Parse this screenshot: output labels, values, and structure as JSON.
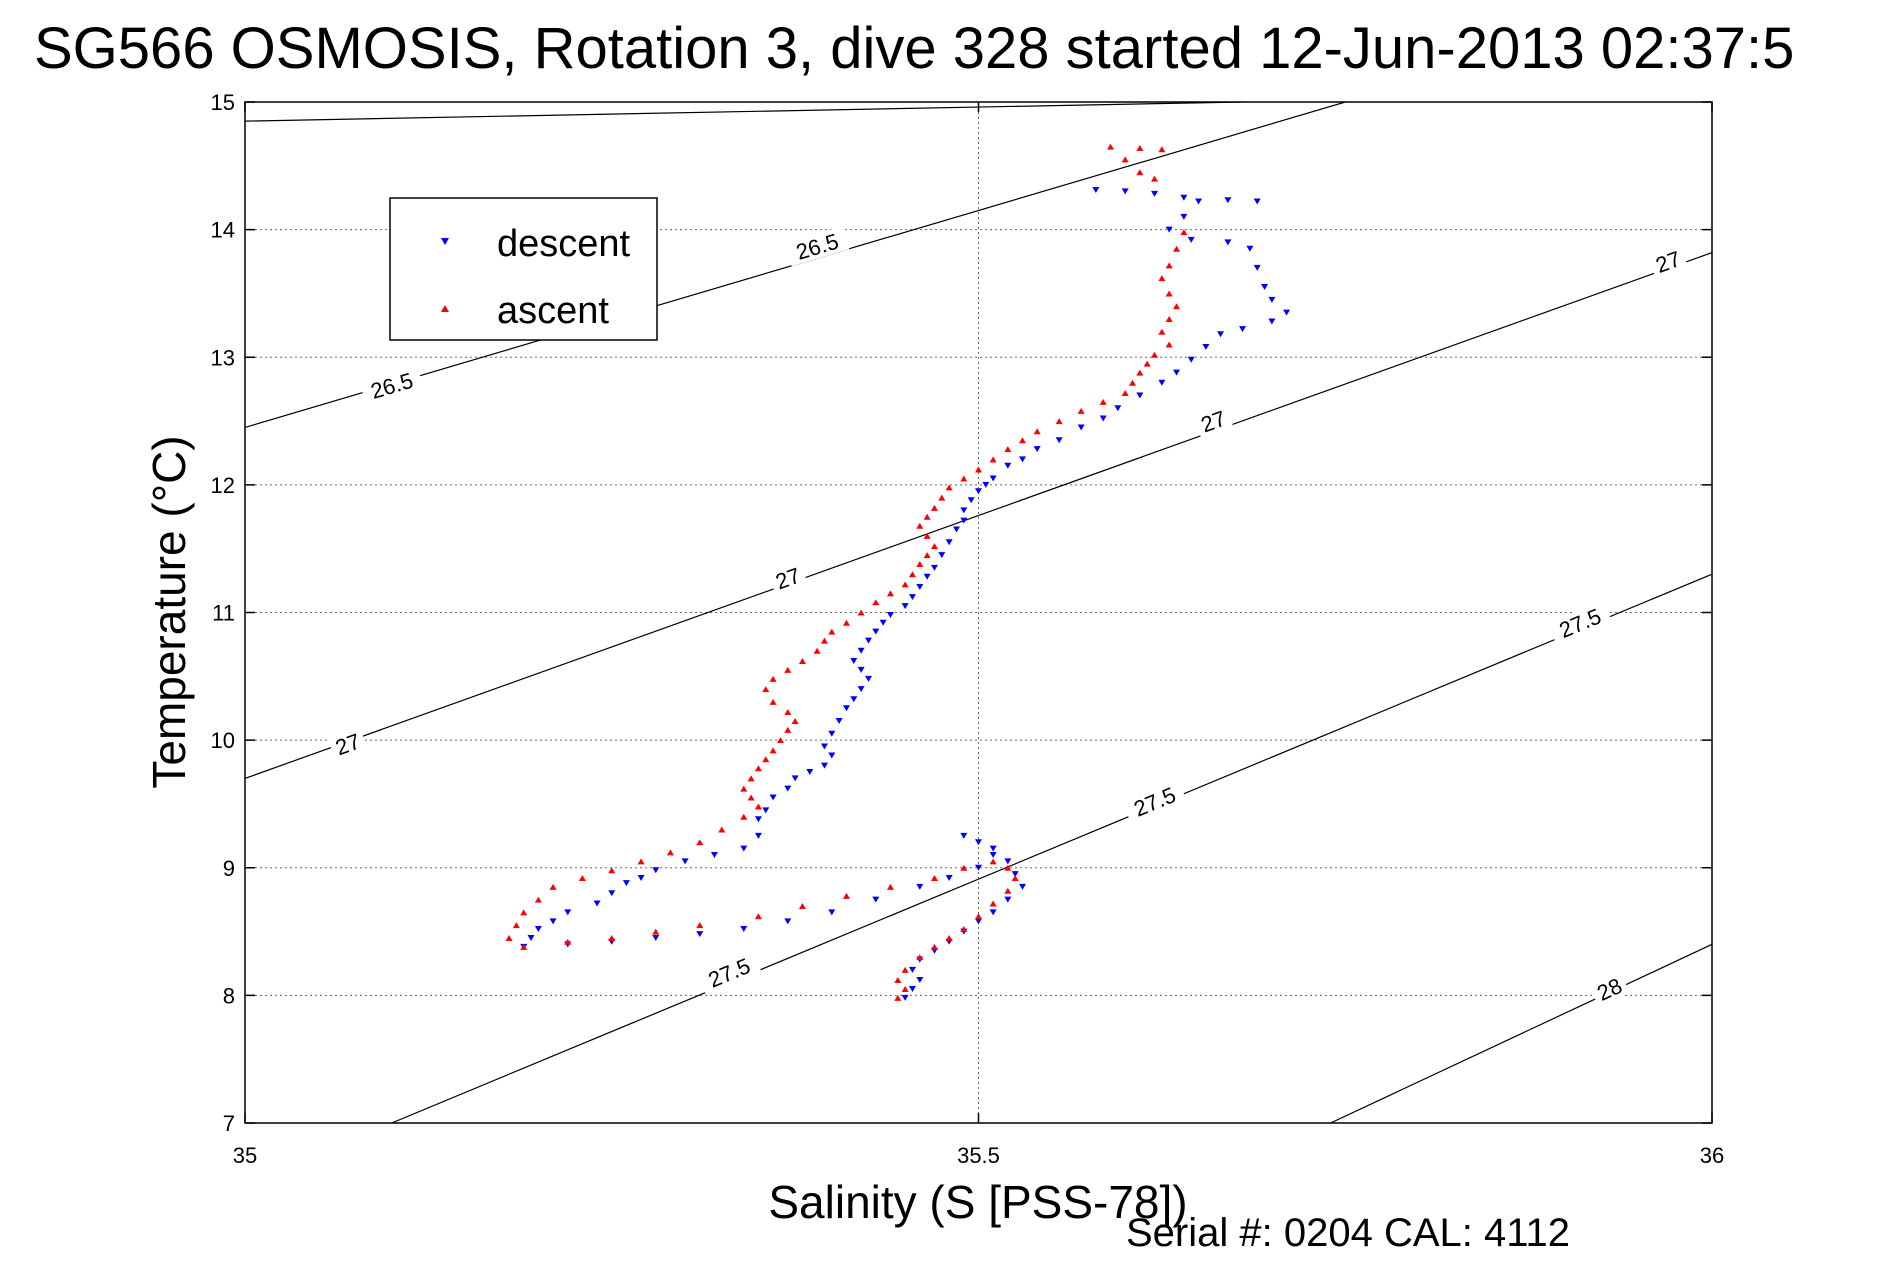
{
  "chart_data": {
    "type": "scatter",
    "title": "SG566 OSMOSIS, Rotation 3, dive 328 started 12-Jun-2013 02:37:5",
    "xlabel": "Salinity (S [PSS-78])",
    "ylabel": "Temperature (°C)",
    "xlim": [
      35,
      36
    ],
    "ylim": [
      7,
      15
    ],
    "x_ticks": [
      "35",
      "35.5",
      "36"
    ],
    "y_ticks": [
      "7",
      "8",
      "9",
      "10",
      "11",
      "12",
      "13",
      "14",
      "15"
    ],
    "grid": "dotted, at tick marks",
    "legend_position": "upper-left",
    "footer": "Serial #: 0204  CAL: 4112",
    "contours": [
      {
        "label": "26.5",
        "points": [
          [
            35.0,
            14.85
          ],
          [
            35.68,
            15.0
          ]
        ],
        "label_positions": []
      },
      {
        "label": "26.5",
        "points": [
          [
            35.0,
            12.45
          ],
          [
            35.75,
            15.0
          ]
        ],
        "label_positions": [
          [
            35.1,
            12.78
          ],
          [
            35.39,
            13.87
          ]
        ]
      },
      {
        "label": "27",
        "points": [
          [
            35.0,
            9.7
          ],
          [
            36.0,
            13.82
          ]
        ],
        "label_positions": [
          [
            35.07,
            9.97
          ],
          [
            35.37,
            11.27
          ],
          [
            35.66,
            12.5
          ],
          [
            35.97,
            13.75
          ]
        ]
      },
      {
        "label": "27.5",
        "points": [
          [
            35.1,
            7.0
          ],
          [
            36.0,
            11.3
          ]
        ],
        "label_positions": [
          [
            35.33,
            8.18
          ],
          [
            35.62,
            9.52
          ],
          [
            35.91,
            10.92
          ]
        ]
      },
      {
        "label": "28",
        "points": [
          [
            35.74,
            7.0
          ],
          [
            36.0,
            8.4
          ]
        ],
        "label_positions": [
          [
            35.93,
            8.05
          ]
        ]
      }
    ],
    "series": [
      {
        "name": "descent",
        "color": "#0000ff",
        "marker": "triangle-down",
        "points": [
          [
            35.58,
            14.31
          ],
          [
            35.6,
            14.3
          ],
          [
            35.62,
            14.28
          ],
          [
            35.64,
            14.25
          ],
          [
            35.65,
            14.22
          ],
          [
            35.67,
            14.23
          ],
          [
            35.69,
            14.22
          ],
          [
            35.64,
            14.1
          ],
          [
            35.63,
            14.0
          ],
          [
            35.645,
            13.92
          ],
          [
            35.67,
            13.9
          ],
          [
            35.685,
            13.85
          ],
          [
            35.69,
            13.7
          ],
          [
            35.695,
            13.55
          ],
          [
            35.7,
            13.45
          ],
          [
            35.71,
            13.35
          ],
          [
            35.7,
            13.28
          ],
          [
            35.68,
            13.22
          ],
          [
            35.665,
            13.18
          ],
          [
            35.655,
            13.08
          ],
          [
            35.645,
            12.98
          ],
          [
            35.635,
            12.88
          ],
          [
            35.625,
            12.8
          ],
          [
            35.61,
            12.7
          ],
          [
            35.595,
            12.6
          ],
          [
            35.585,
            12.52
          ],
          [
            35.57,
            12.45
          ],
          [
            35.555,
            12.35
          ],
          [
            35.54,
            12.28
          ],
          [
            35.53,
            12.2
          ],
          [
            35.52,
            12.15
          ],
          [
            35.51,
            12.05
          ],
          [
            35.505,
            12.0
          ],
          [
            35.5,
            11.95
          ],
          [
            35.495,
            11.88
          ],
          [
            35.49,
            11.8
          ],
          [
            35.49,
            11.72
          ],
          [
            35.485,
            11.65
          ],
          [
            35.48,
            11.55
          ],
          [
            35.475,
            11.45
          ],
          [
            35.47,
            11.35
          ],
          [
            35.465,
            11.28
          ],
          [
            35.46,
            11.2
          ],
          [
            35.455,
            11.12
          ],
          [
            35.45,
            11.05
          ],
          [
            35.44,
            10.98
          ],
          [
            35.435,
            10.92
          ],
          [
            35.43,
            10.85
          ],
          [
            35.425,
            10.78
          ],
          [
            35.42,
            10.7
          ],
          [
            35.415,
            10.62
          ],
          [
            35.42,
            10.55
          ],
          [
            35.425,
            10.48
          ],
          [
            35.42,
            10.4
          ],
          [
            35.415,
            10.32
          ],
          [
            35.41,
            10.25
          ],
          [
            35.405,
            10.15
          ],
          [
            35.4,
            10.05
          ],
          [
            35.395,
            9.95
          ],
          [
            35.4,
            9.88
          ],
          [
            35.395,
            9.8
          ],
          [
            35.385,
            9.75
          ],
          [
            35.375,
            9.7
          ],
          [
            35.37,
            9.62
          ],
          [
            35.36,
            9.55
          ],
          [
            35.355,
            9.45
          ],
          [
            35.35,
            9.38
          ],
          [
            35.35,
            9.25
          ],
          [
            35.34,
            9.15
          ],
          [
            35.32,
            9.1
          ],
          [
            35.3,
            9.05
          ],
          [
            35.28,
            8.98
          ],
          [
            35.27,
            8.92
          ],
          [
            35.26,
            8.88
          ],
          [
            35.25,
            8.8
          ],
          [
            35.24,
            8.72
          ],
          [
            35.22,
            8.65
          ],
          [
            35.21,
            8.58
          ],
          [
            35.2,
            8.52
          ],
          [
            35.195,
            8.45
          ],
          [
            35.19,
            8.38
          ],
          [
            35.22,
            8.4
          ],
          [
            35.25,
            8.42
          ],
          [
            35.28,
            8.45
          ],
          [
            35.31,
            8.48
          ],
          [
            35.34,
            8.52
          ],
          [
            35.37,
            8.58
          ],
          [
            35.4,
            8.65
          ],
          [
            35.43,
            8.75
          ],
          [
            35.46,
            8.85
          ],
          [
            35.48,
            8.92
          ],
          [
            35.5,
            9.0
          ],
          [
            35.51,
            9.1
          ],
          [
            35.5,
            9.2
          ],
          [
            35.49,
            9.25
          ],
          [
            35.51,
            9.15
          ],
          [
            35.52,
            9.05
          ],
          [
            35.525,
            8.95
          ],
          [
            35.53,
            8.85
          ],
          [
            35.52,
            8.75
          ],
          [
            35.51,
            8.65
          ],
          [
            35.5,
            8.58
          ],
          [
            35.49,
            8.5
          ],
          [
            35.48,
            8.42
          ],
          [
            35.47,
            8.35
          ],
          [
            35.46,
            8.28
          ],
          [
            35.455,
            8.2
          ],
          [
            35.46,
            8.12
          ],
          [
            35.455,
            8.05
          ],
          [
            35.45,
            7.98
          ]
        ]
      },
      {
        "name": "ascent",
        "color": "#ff0000",
        "marker": "triangle-up",
        "points": [
          [
            35.59,
            14.65
          ],
          [
            35.61,
            14.64
          ],
          [
            35.625,
            14.63
          ],
          [
            35.6,
            14.55
          ],
          [
            35.61,
            14.45
          ],
          [
            35.62,
            14.4
          ],
          [
            35.64,
            13.98
          ],
          [
            35.635,
            13.85
          ],
          [
            35.63,
            13.72
          ],
          [
            35.625,
            13.62
          ],
          [
            35.63,
            13.5
          ],
          [
            35.635,
            13.4
          ],
          [
            35.63,
            13.3
          ],
          [
            35.625,
            13.2
          ],
          [
            35.63,
            13.1
          ],
          [
            35.62,
            13.02
          ],
          [
            35.615,
            12.95
          ],
          [
            35.61,
            12.88
          ],
          [
            35.605,
            12.8
          ],
          [
            35.6,
            12.72
          ],
          [
            35.585,
            12.65
          ],
          [
            35.57,
            12.58
          ],
          [
            35.555,
            12.5
          ],
          [
            35.54,
            12.42
          ],
          [
            35.53,
            12.35
          ],
          [
            35.52,
            12.28
          ],
          [
            35.51,
            12.2
          ],
          [
            35.5,
            12.12
          ],
          [
            35.49,
            12.05
          ],
          [
            35.48,
            11.98
          ],
          [
            35.475,
            11.9
          ],
          [
            35.47,
            11.82
          ],
          [
            35.465,
            11.75
          ],
          [
            35.46,
            11.68
          ],
          [
            35.465,
            11.6
          ],
          [
            35.47,
            11.52
          ],
          [
            35.465,
            11.45
          ],
          [
            35.46,
            11.38
          ],
          [
            35.455,
            11.3
          ],
          [
            35.45,
            11.22
          ],
          [
            35.44,
            11.15
          ],
          [
            35.43,
            11.08
          ],
          [
            35.42,
            11.0
          ],
          [
            35.41,
            10.92
          ],
          [
            35.4,
            10.85
          ],
          [
            35.395,
            10.78
          ],
          [
            35.39,
            10.7
          ],
          [
            35.38,
            10.62
          ],
          [
            35.37,
            10.55
          ],
          [
            35.36,
            10.48
          ],
          [
            35.355,
            10.4
          ],
          [
            35.36,
            10.3
          ],
          [
            35.37,
            10.22
          ],
          [
            35.375,
            10.15
          ],
          [
            35.37,
            10.08
          ],
          [
            35.365,
            10.0
          ],
          [
            35.36,
            9.92
          ],
          [
            35.355,
            9.85
          ],
          [
            35.35,
            9.78
          ],
          [
            35.345,
            9.7
          ],
          [
            35.34,
            9.62
          ],
          [
            35.345,
            9.55
          ],
          [
            35.35,
            9.48
          ],
          [
            35.34,
            9.4
          ],
          [
            35.325,
            9.3
          ],
          [
            35.31,
            9.2
          ],
          [
            35.29,
            9.12
          ],
          [
            35.27,
            9.05
          ],
          [
            35.25,
            8.98
          ],
          [
            35.23,
            8.92
          ],
          [
            35.21,
            8.85
          ],
          [
            35.2,
            8.75
          ],
          [
            35.19,
            8.65
          ],
          [
            35.185,
            8.55
          ],
          [
            35.18,
            8.45
          ],
          [
            35.19,
            8.38
          ],
          [
            35.22,
            8.42
          ],
          [
            35.25,
            8.45
          ],
          [
            35.28,
            8.5
          ],
          [
            35.31,
            8.55
          ],
          [
            35.35,
            8.62
          ],
          [
            35.38,
            8.7
          ],
          [
            35.41,
            8.78
          ],
          [
            35.44,
            8.85
          ],
          [
            35.47,
            8.92
          ],
          [
            35.49,
            9.0
          ],
          [
            35.51,
            9.05
          ],
          [
            35.52,
            9.0
          ],
          [
            35.525,
            8.92
          ],
          [
            35.52,
            8.82
          ],
          [
            35.51,
            8.72
          ],
          [
            35.5,
            8.62
          ],
          [
            35.49,
            8.52
          ],
          [
            35.48,
            8.45
          ],
          [
            35.47,
            8.38
          ],
          [
            35.46,
            8.3
          ],
          [
            35.45,
            8.2
          ],
          [
            35.445,
            8.12
          ],
          [
            35.45,
            8.05
          ],
          [
            35.445,
            7.98
          ]
        ]
      }
    ]
  }
}
